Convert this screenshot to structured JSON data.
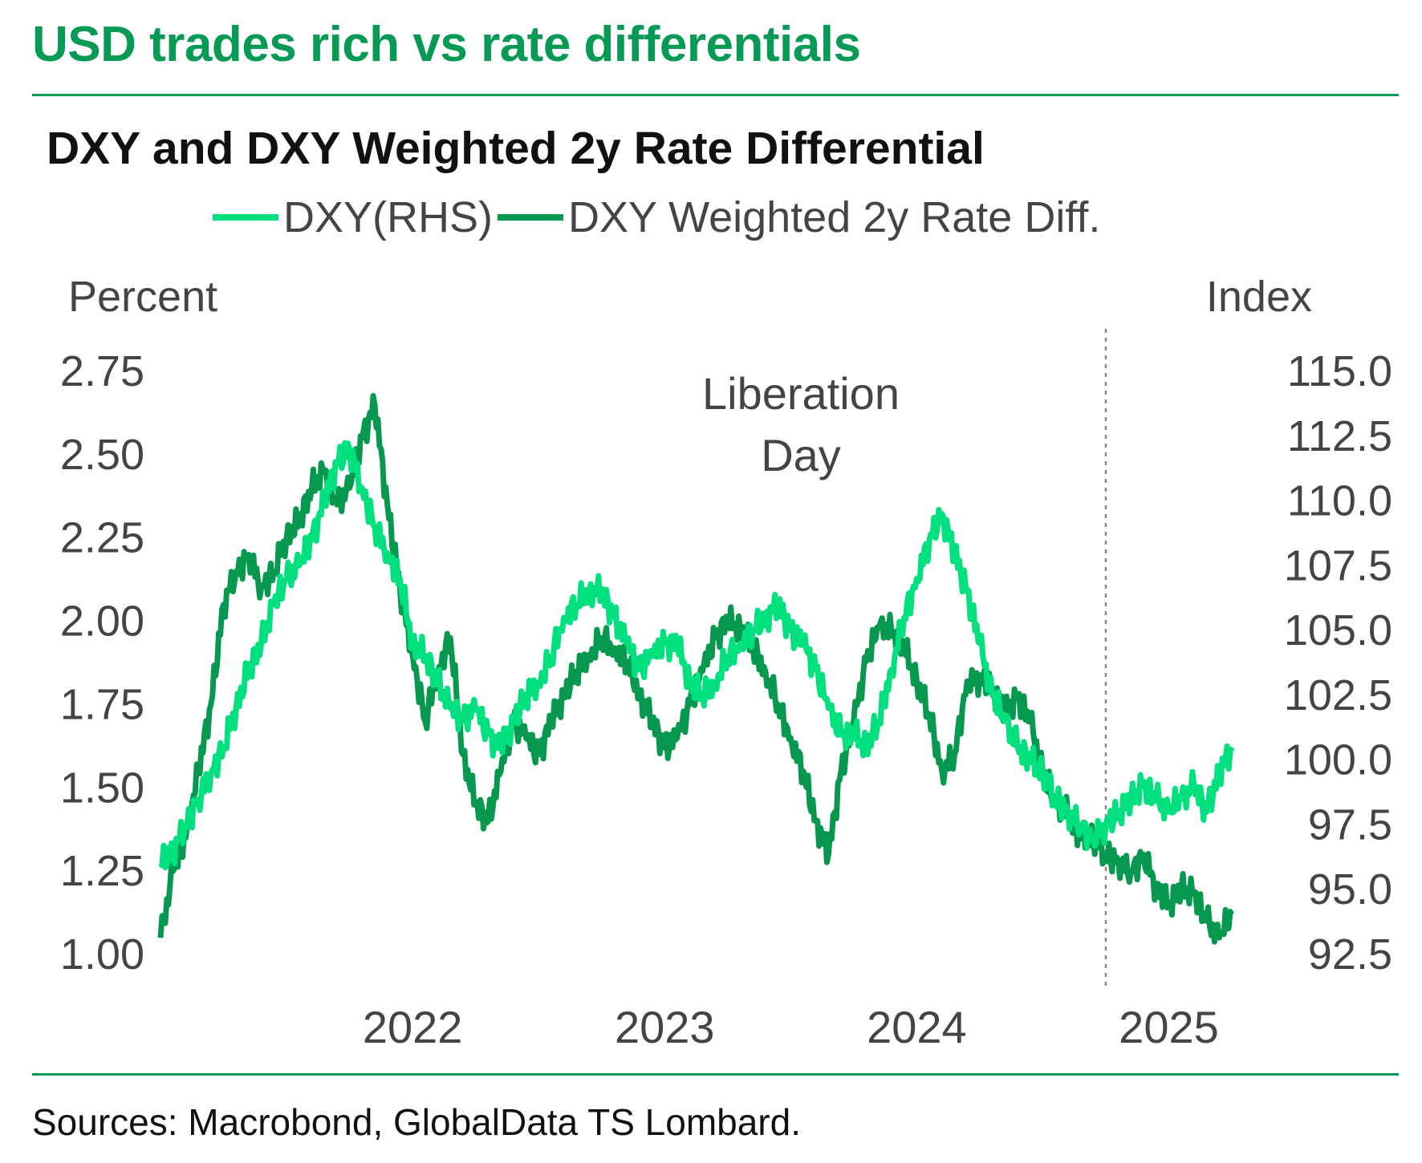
{
  "headline": "USD trades rich vs rate differentials",
  "colors": {
    "brand": "#069a55",
    "dxy": "#00e07f",
    "rate_diff": "#07984f",
    "annotation": "#888888"
  },
  "chart_data": {
    "type": "line",
    "title": "DXY and DXY Weighted 2y Rate Differential",
    "legend": [
      {
        "label": "DXY(RHS)",
        "color": "#00e07f"
      },
      {
        "label": "DXY Weighted 2y Rate Diff.",
        "color": "#07984f"
      }
    ],
    "y_left": {
      "label": "Percent",
      "min": 1.0,
      "max": 2.75,
      "ticks": [
        "2.75",
        "2.50",
        "2.25",
        "2.00",
        "1.75",
        "1.50",
        "1.25",
        "1.00"
      ]
    },
    "y_right": {
      "label": "Index",
      "min": 92.5,
      "max": 115.0,
      "ticks": [
        "115.0",
        "112.5",
        "110.0",
        "107.5",
        "105.0",
        "102.5",
        "100.0",
        "97.5",
        "95.0",
        "92.5"
      ]
    },
    "x_ticks": [
      "2022",
      "2023",
      "2024",
      "2025"
    ],
    "x_range": [
      2021.5,
      2025.75
    ],
    "annotation": {
      "label_line1": "Liberation",
      "label_line2": "Day",
      "x": 2025.25
    },
    "series": [
      {
        "name": "DXY(RHS)",
        "axis": "right",
        "x": [
          2021.5,
          2021.55,
          2021.6,
          2021.65,
          2021.7,
          2021.75,
          2021.8,
          2021.85,
          2021.9,
          2021.95,
          2022.0,
          2022.05,
          2022.1,
          2022.15,
          2022.2,
          2022.25,
          2022.3,
          2022.35,
          2022.4,
          2022.45,
          2022.5,
          2022.55,
          2022.6,
          2022.65,
          2022.7,
          2022.75,
          2022.8,
          2022.85,
          2022.9,
          2022.95,
          2023.0,
          2023.05,
          2023.1,
          2023.15,
          2023.2,
          2023.25,
          2023.3,
          2023.35,
          2023.4,
          2023.45,
          2023.5,
          2023.55,
          2023.6,
          2023.65,
          2023.7,
          2023.75,
          2023.8,
          2023.85,
          2023.9,
          2023.95,
          2024.0,
          2024.05,
          2024.1,
          2024.15,
          2024.2,
          2024.25,
          2024.3,
          2024.35,
          2024.4,
          2024.45,
          2024.5,
          2024.55,
          2024.6,
          2024.65,
          2024.7,
          2024.75,
          2024.8,
          2024.85,
          2024.9,
          2024.95,
          2025.0,
          2025.05,
          2025.1,
          2025.15,
          2025.2,
          2025.25,
          2025.3,
          2025.35,
          2025.4,
          2025.45,
          2025.5,
          2025.55,
          2025.6,
          2025.65,
          2025.7,
          2025.75
        ],
        "values": [
          96.0,
          96.5,
          97.5,
          98.5,
          99.5,
          100.5,
          102.0,
          103.5,
          104.5,
          106.0,
          107.0,
          107.5,
          108.5,
          110.0,
          111.5,
          112.0,
          110.5,
          109.0,
          108.0,
          107.0,
          104.5,
          104.0,
          103.0,
          102.0,
          101.5,
          102.0,
          101.0,
          100.5,
          101.5,
          102.5,
          103.0,
          104.0,
          105.5,
          106.0,
          106.5,
          106.5,
          105.5,
          104.5,
          103.5,
          104.0,
          104.5,
          104.5,
          103.0,
          102.5,
          103.0,
          104.0,
          104.5,
          105.0,
          105.5,
          106.0,
          105.0,
          104.5,
          103.5,
          102.0,
          101.0,
          101.0,
          100.5,
          101.5,
          103.5,
          105.5,
          107.0,
          108.5,
          109.5,
          108.0,
          106.5,
          104.5,
          102.5,
          101.5,
          100.5,
          100.0,
          99.5,
          98.5,
          98.0,
          97.5,
          97.0,
          97.5,
          98.0,
          98.5,
          99.0,
          98.5,
          98.0,
          98.5,
          99.0,
          98.0,
          99.5,
          100.5
        ]
      },
      {
        "name": "DXY Weighted 2y Rate Diff.",
        "axis": "left",
        "x": [
          2021.5,
          2021.55,
          2021.6,
          2021.65,
          2021.7,
          2021.75,
          2021.8,
          2021.85,
          2021.9,
          2021.95,
          2022.0,
          2022.05,
          2022.1,
          2022.15,
          2022.2,
          2022.25,
          2022.3,
          2022.35,
          2022.4,
          2022.45,
          2022.5,
          2022.55,
          2022.6,
          2022.65,
          2022.7,
          2022.75,
          2022.8,
          2022.85,
          2022.9,
          2022.95,
          2023.0,
          2023.05,
          2023.1,
          2023.15,
          2023.2,
          2023.25,
          2023.3,
          2023.35,
          2023.4,
          2023.45,
          2023.5,
          2023.55,
          2023.6,
          2023.65,
          2023.7,
          2023.75,
          2023.8,
          2023.85,
          2023.9,
          2023.95,
          2024.0,
          2024.05,
          2024.1,
          2024.15,
          2024.2,
          2024.25,
          2024.3,
          2024.35,
          2024.4,
          2024.45,
          2024.5,
          2024.55,
          2024.6,
          2024.65,
          2024.7,
          2024.75,
          2024.8,
          2024.85,
          2024.9,
          2024.95,
          2025.0,
          2025.05,
          2025.1,
          2025.15,
          2025.2,
          2025.25,
          2025.3,
          2025.35,
          2025.4,
          2025.45,
          2025.5,
          2025.55,
          2025.6,
          2025.65,
          2025.7,
          2025.75
        ],
        "values": [
          1.05,
          1.25,
          1.35,
          1.55,
          1.75,
          2.05,
          2.15,
          2.2,
          2.1,
          2.15,
          2.25,
          2.3,
          2.4,
          2.45,
          2.35,
          2.4,
          2.55,
          2.65,
          2.35,
          2.1,
          1.9,
          1.7,
          1.85,
          1.95,
          1.6,
          1.45,
          1.4,
          1.55,
          1.7,
          1.65,
          1.6,
          1.7,
          1.78,
          1.85,
          1.9,
          1.95,
          1.92,
          1.88,
          1.78,
          1.7,
          1.62,
          1.65,
          1.75,
          1.85,
          1.95,
          2.0,
          1.98,
          1.92,
          1.85,
          1.75,
          1.65,
          1.55,
          1.4,
          1.3,
          1.55,
          1.7,
          1.88,
          1.98,
          1.97,
          1.92,
          1.82,
          1.72,
          1.55,
          1.6,
          1.82,
          1.83,
          1.8,
          1.73,
          1.77,
          1.7,
          1.55,
          1.45,
          1.42,
          1.35,
          1.35,
          1.3,
          1.28,
          1.25,
          1.3,
          1.2,
          1.15,
          1.2,
          1.18,
          1.1,
          1.05,
          1.12
        ]
      }
    ]
  },
  "source": "Sources: Macrobond, GlobalData TS Lombard."
}
